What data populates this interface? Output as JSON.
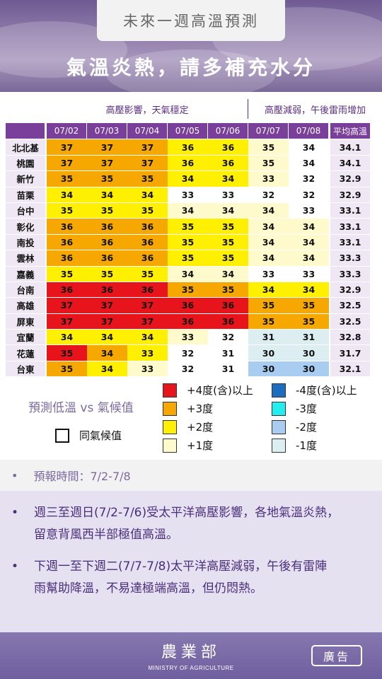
{
  "header": {
    "title": "未來一週高溫預測",
    "subtitle": "氣溫炎熱，請多補充水分"
  },
  "notes": {
    "left": "高壓影響，天氣穩定",
    "right": "高壓減弱，午後雷雨增加"
  },
  "table": {
    "col_headers": [
      "",
      "07/02",
      "07/03",
      "07/04",
      "07/05",
      "07/06",
      "07/07",
      "07/08",
      "平均高溫"
    ],
    "rows": [
      {
        "city": "北北基",
        "values": [
          "37",
          "37",
          "37",
          "36",
          "36",
          "35",
          "34"
        ],
        "avg": "34.1",
        "levels": [
          "+3",
          "+3",
          "+3",
          "+2",
          "+2",
          "+1",
          "0"
        ]
      },
      {
        "city": "桃園",
        "values": [
          "37",
          "37",
          "37",
          "36",
          "36",
          "35",
          "34"
        ],
        "avg": "34.1",
        "levels": [
          "+3",
          "+3",
          "+3",
          "+2",
          "+2",
          "+1",
          "0"
        ]
      },
      {
        "city": "新竹",
        "values": [
          "35",
          "35",
          "35",
          "34",
          "34",
          "33",
          "32"
        ],
        "avg": "32.9",
        "levels": [
          "+3",
          "+3",
          "+3",
          "+2",
          "+2",
          "+1",
          "0"
        ]
      },
      {
        "city": "苗栗",
        "values": [
          "34",
          "34",
          "34",
          "33",
          "33",
          "32",
          "32"
        ],
        "avg": "32.9",
        "levels": [
          "+2",
          "+2",
          "+2",
          "0",
          "0",
          "0",
          "0"
        ]
      },
      {
        "city": "台中",
        "values": [
          "35",
          "35",
          "35",
          "34",
          "34",
          "34",
          "33"
        ],
        "avg": "33.1",
        "levels": [
          "+2",
          "+2",
          "+2",
          "+1",
          "+1",
          "+1",
          "0"
        ]
      },
      {
        "city": "彰化",
        "values": [
          "36",
          "36",
          "36",
          "35",
          "35",
          "34",
          "34"
        ],
        "avg": "33.1",
        "levels": [
          "+3",
          "+3",
          "+3",
          "+2",
          "+2",
          "+1",
          "+1"
        ]
      },
      {
        "city": "南投",
        "values": [
          "36",
          "36",
          "36",
          "35",
          "35",
          "34",
          "34"
        ],
        "avg": "33.1",
        "levels": [
          "+3",
          "+3",
          "+3",
          "+2",
          "+2",
          "+1",
          "+1"
        ]
      },
      {
        "city": "雲林",
        "values": [
          "36",
          "36",
          "36",
          "35",
          "35",
          "34",
          "34"
        ],
        "avg": "33.3",
        "levels": [
          "+3",
          "+3",
          "+3",
          "+2",
          "+2",
          "+1",
          "+1"
        ]
      },
      {
        "city": "嘉義",
        "values": [
          "35",
          "35",
          "35",
          "34",
          "34",
          "33",
          "33"
        ],
        "avg": "33.3",
        "levels": [
          "+2",
          "+2",
          "+2",
          "+1",
          "+1",
          "0",
          "0"
        ]
      },
      {
        "city": "台南",
        "values": [
          "36",
          "36",
          "36",
          "35",
          "35",
          "34",
          "34"
        ],
        "avg": "32.9",
        "levels": [
          "+4",
          "+4",
          "+4",
          "+3",
          "+3",
          "+2",
          "+2"
        ]
      },
      {
        "city": "高雄",
        "values": [
          "37",
          "37",
          "37",
          "36",
          "36",
          "35",
          "35"
        ],
        "avg": "32.5",
        "levels": [
          "+4",
          "+4",
          "+4",
          "+4",
          "+4",
          "+3",
          "+3"
        ]
      },
      {
        "city": "屏東",
        "values": [
          "37",
          "37",
          "37",
          "36",
          "36",
          "35",
          "35"
        ],
        "avg": "32.5",
        "levels": [
          "+4",
          "+4",
          "+4",
          "+4",
          "+4",
          "+3",
          "+3"
        ]
      },
      {
        "city": "宜蘭",
        "values": [
          "34",
          "34",
          "34",
          "33",
          "32",
          "31",
          "31"
        ],
        "avg": "32.8",
        "levels": [
          "+2",
          "+2",
          "+2",
          "+1",
          "0",
          "-1",
          "-1"
        ]
      },
      {
        "city": "花蓮",
        "values": [
          "35",
          "34",
          "33",
          "32",
          "31",
          "30",
          "30"
        ],
        "avg": "31.7",
        "levels": [
          "+4",
          "+3",
          "+2",
          "0",
          "0",
          "-1",
          "-1"
        ]
      },
      {
        "city": "台東",
        "values": [
          "35",
          "34",
          "33",
          "32",
          "31",
          "30",
          "30"
        ],
        "avg": "32.1",
        "levels": [
          "+3",
          "+2",
          "+1",
          "0",
          "0",
          "-2",
          "-2"
        ]
      }
    ]
  },
  "colors": {
    "+4": "#e8141c",
    "+3": "#f7a800",
    "+2": "#ffef00",
    "+1": "#fffacc",
    "0": "#ffffff",
    "-1": "#dceef2",
    "-2": "#a9cdf0",
    "-3": "#22eef0",
    "-4": "#1c6dc0"
  },
  "legend": {
    "title": "預測低溫 vs 氣候值",
    "same_label": "同氣候值",
    "items": [
      {
        "key": "+4",
        "label": "+4度(含)以上"
      },
      {
        "key": "+3",
        "label": "+3度"
      },
      {
        "key": "+2",
        "label": "+2度"
      },
      {
        "key": "+1",
        "label": "+1度"
      },
      {
        "key": "-4",
        "label": "-4度(含)以上"
      },
      {
        "key": "-3",
        "label": "-3度"
      },
      {
        "key": "-2",
        "label": "-2度"
      },
      {
        "key": "-1",
        "label": "-1度"
      }
    ]
  },
  "forecast_time": {
    "bullet": "•",
    "label": "預報時間：7/2-7/8"
  },
  "descriptions": [
    {
      "bullet": "•",
      "line1": "週三至週日(7/2-7/6)受太平洋高壓影響，各地氣溫炎熱，",
      "line2": "留意背風西半部極值高溫。"
    },
    {
      "bullet": "•",
      "line1": "下週一至下週二(7/7-7/8)太平洋高壓減弱，午後有雷陣",
      "line2": "雨幫助降溫，不易達極端高溫，但仍悶熱。"
    }
  ],
  "footer": {
    "logo_cn": "農業部",
    "logo_en": "MINISTRY OF AGRICULTURE",
    "ad_label": "廣告"
  }
}
